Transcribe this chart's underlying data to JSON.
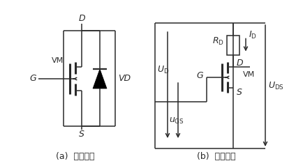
{
  "fig_width": 4.34,
  "fig_height": 2.41,
  "dpi": 100,
  "bg": "#ffffff",
  "lc": "#2a2a2a",
  "lw": 1.1,
  "cap_a": "(a)  电气符号",
  "cap_b": "(b)  基本接法",
  "G_a": "G",
  "D_a": "D",
  "S_a": "S",
  "VM_a": "VM",
  "VD_a": "VD",
  "UD_b": "$U_{\\mathrm{D}}$",
  "G_b": "G",
  "D_b": "D",
  "S_b": "S",
  "VM_b": "VM",
  "RD_b": "$R_{\\mathrm{D}}$",
  "ID_b": "$I_{\\mathrm{D}}$",
  "uGS_b": "$u_{\\mathrm{GS}}$",
  "UDS_b": "$U_{\\mathrm{DS}}$"
}
